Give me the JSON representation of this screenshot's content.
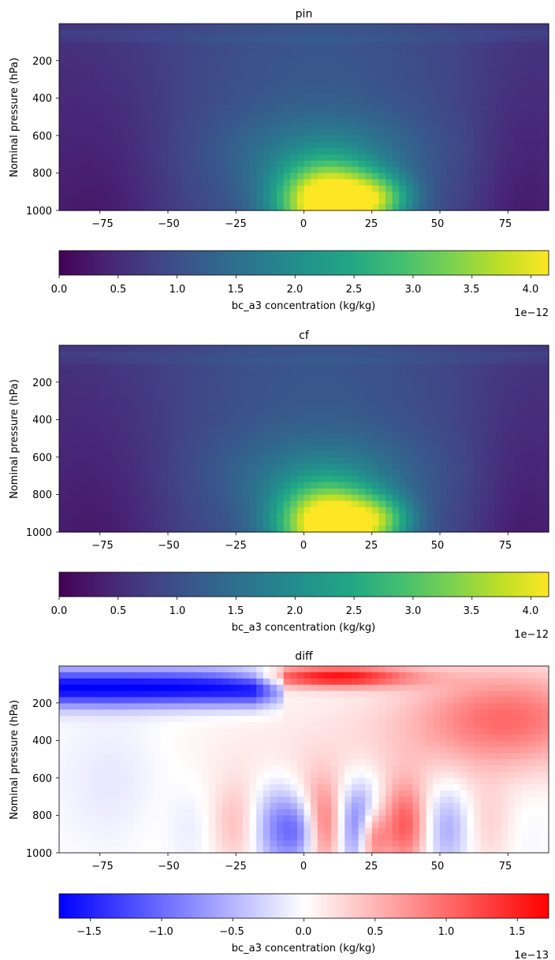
{
  "chart_data": [
    {
      "type": "heatmap",
      "title": "pin",
      "ylabel": "Nominal pressure (hPa)",
      "xticks": [
        -75,
        -50,
        -25,
        0,
        25,
        50,
        75
      ],
      "yticks": [
        200,
        400,
        600,
        800,
        1000
      ],
      "xlim": [
        -90,
        90
      ],
      "ylim": [
        1000,
        3
      ],
      "colormap": "viridis",
      "colorbar": {
        "label": "bc_a3 concentration (kg/kg)",
        "ticks": [
          "0.0",
          "0.5",
          "1.0",
          "1.5",
          "2.0",
          "2.5",
          "3.0",
          "3.5",
          "4.0"
        ],
        "range": [
          0,
          4.15
        ],
        "offset": "1e−12"
      }
    },
    {
      "type": "heatmap",
      "title": "cf",
      "ylabel": "Nominal pressure (hPa)",
      "xticks": [
        -75,
        -50,
        -25,
        0,
        25,
        50,
        75
      ],
      "yticks": [
        200,
        400,
        600,
        800,
        1000
      ],
      "xlim": [
        -90,
        90
      ],
      "ylim": [
        1000,
        3
      ],
      "colormap": "viridis",
      "colorbar": {
        "label": "bc_a3 concentration (kg/kg)",
        "ticks": [
          "0.0",
          "0.5",
          "1.0",
          "1.5",
          "2.0",
          "2.5",
          "3.0",
          "3.5",
          "4.0"
        ],
        "range": [
          0,
          4.15
        ],
        "offset": "1e−12"
      }
    },
    {
      "type": "heatmap",
      "title": "diff",
      "ylabel": "Nominal pressure (hPa)",
      "xticks": [
        -75,
        -50,
        -25,
        0,
        25,
        50,
        75
      ],
      "yticks": [
        200,
        400,
        600,
        800,
        1000
      ],
      "xlim": [
        -90,
        90
      ],
      "ylim": [
        1000,
        3
      ],
      "colormap": "bwr",
      "colorbar": {
        "label": "bc_a3 concentration (kg/kg)",
        "ticks": [
          "−1.5",
          "−1.0",
          "−0.5",
          "0.0",
          "0.5",
          "1.0",
          "1.5"
        ],
        "range": [
          -1.72,
          1.72
        ],
        "offset": "1e−13"
      }
    }
  ]
}
